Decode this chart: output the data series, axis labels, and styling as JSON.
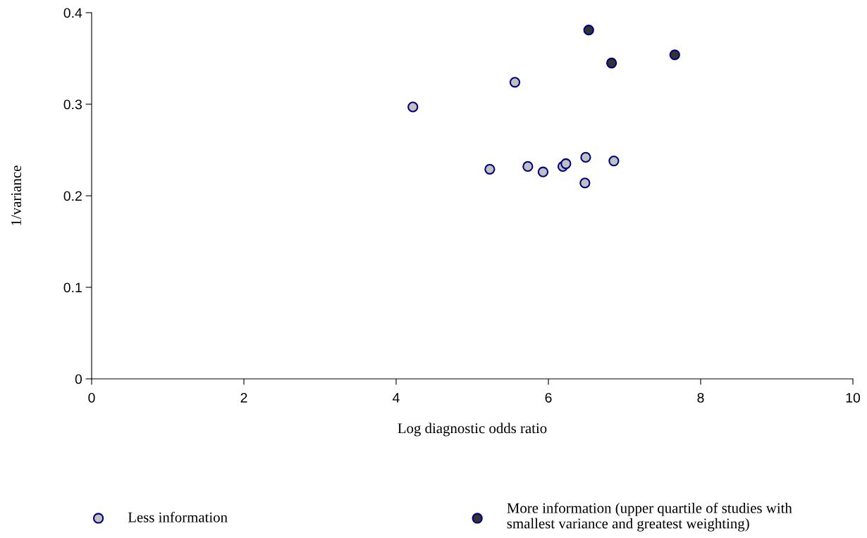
{
  "chart_data": {
    "type": "scatter",
    "xlabel": "Log diagnostic odds ratio",
    "ylabel": "1/variance",
    "xlim": [
      0,
      10
    ],
    "xticks": [
      0,
      2,
      4,
      6,
      8,
      10
    ],
    "ylim": [
      0,
      0.4
    ],
    "yticks": [
      0,
      0.1,
      0.2,
      0.3,
      0.4
    ],
    "grid": false,
    "legend": "bottom",
    "marker": "circle",
    "series": [
      {
        "name": "Less information",
        "color": "#c0c0c0",
        "x": [
          4.22,
          5.56,
          5.23,
          5.73,
          5.93,
          6.19,
          6.23,
          6.49,
          6.48,
          6.86
        ],
        "values": [
          0.297,
          0.324,
          0.229,
          0.232,
          0.226,
          0.232,
          0.235,
          0.242,
          0.214,
          0.238
        ]
      },
      {
        "name": "More information (upper quartile of studies with smallest variance and greatest weighting)",
        "color": "#333333",
        "x": [
          6.53,
          6.83,
          7.66
        ],
        "values": [
          0.381,
          0.345,
          0.354
        ]
      }
    ]
  }
}
